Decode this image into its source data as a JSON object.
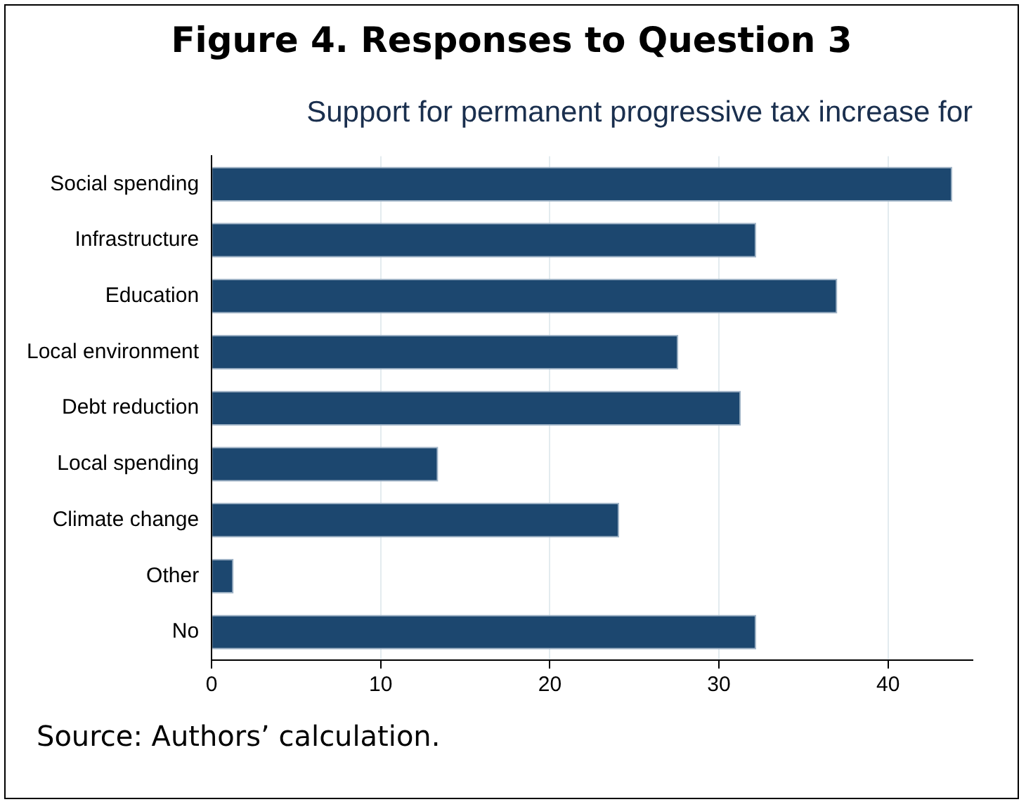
{
  "chart_data": {
    "type": "bar",
    "orientation": "horizontal",
    "title": "Figure 4. Responses to Question 3",
    "subtitle": "Support for permanent progressive tax increase for",
    "categories": [
      "Social spending",
      "Infrastructure",
      "Education",
      "Local environment",
      "Debt reduction",
      "Local spending",
      "Climate change",
      "Other",
      "No"
    ],
    "values": [
      43.8,
      32.2,
      37.0,
      27.6,
      31.3,
      13.4,
      24.1,
      1.3,
      32.2
    ],
    "color": "#1c476f",
    "xlim": [
      0,
      45
    ],
    "xticks": [
      0,
      10,
      20,
      30,
      40
    ],
    "grid": "x",
    "annotations": [
      "Source: Authors’ calculation."
    ]
  }
}
